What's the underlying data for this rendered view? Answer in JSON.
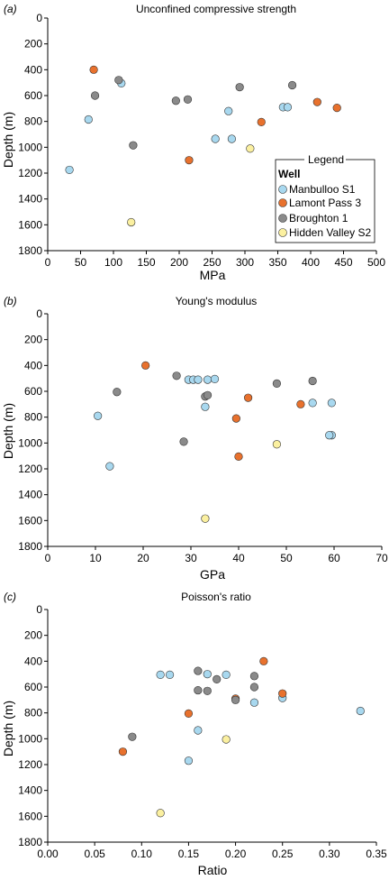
{
  "colors": {
    "Manbulloo S1": "#a8d8ef",
    "Lamont Pass 3": "#e8712d",
    "Broughton 1": "#8a8a8a",
    "Hidden Valley S2": "#fbf0a0"
  },
  "legend": {
    "title": "Legend",
    "heading": "Well",
    "entries": [
      "Manbulloo S1",
      "Lamont Pass 3",
      "Broughton 1",
      "Hidden Valley S2"
    ]
  },
  "chart_data": [
    {
      "type": "scatter",
      "panel": "(a)",
      "title": "Unconfined compressive strength",
      "xlabel": "MPa",
      "ylabel": "Depth (m)",
      "xlim": [
        0,
        500
      ],
      "ylim": [
        0,
        1800
      ],
      "y_inverted": true,
      "xticks": [
        "0",
        "50",
        "100",
        "150",
        "200",
        "250",
        "300",
        "350",
        "400",
        "450",
        "500"
      ],
      "yticks": [
        "0",
        "200",
        "400",
        "600",
        "800",
        "1000",
        "1200",
        "1400",
        "1600",
        "1800"
      ],
      "grid": false,
      "legend": "right",
      "series": [
        {
          "name": "Manbulloo S1",
          "points": [
            [
              33,
              1175
            ],
            [
              62,
              785
            ],
            [
              112,
              505
            ],
            [
              255,
              935
            ],
            [
              275,
              720
            ],
            [
              280,
              935
            ],
            [
              358,
              690
            ],
            [
              365,
              690
            ]
          ]
        },
        {
          "name": "Lamont Pass 3",
          "points": [
            [
              70,
              400
            ],
            [
              215,
              1100
            ],
            [
              325,
              805
            ],
            [
              410,
              650
            ],
            [
              440,
              695
            ]
          ]
        },
        {
          "name": "Broughton 1",
          "points": [
            [
              72,
              600
            ],
            [
              108,
              480
            ],
            [
              130,
              985
            ],
            [
              195,
              640
            ],
            [
              213,
              630
            ],
            [
              292,
              535
            ],
            [
              372,
              520
            ]
          ]
        },
        {
          "name": "Hidden Valley S2",
          "points": [
            [
              127,
              1580
            ],
            [
              308,
              1010
            ]
          ]
        }
      ]
    },
    {
      "type": "scatter",
      "panel": "(b)",
      "title": "Young's modulus",
      "xlabel": "GPa",
      "ylabel": "Depth (m)",
      "xlim": [
        0,
        70
      ],
      "ylim": [
        0,
        1800
      ],
      "y_inverted": true,
      "xticks": [
        "0",
        "10",
        "20",
        "30",
        "40",
        "50",
        "60",
        "70"
      ],
      "yticks": [
        "0",
        "200",
        "400",
        "600",
        "800",
        "1000",
        "1200",
        "1400",
        "1600",
        "1800"
      ],
      "grid": false,
      "series": [
        {
          "name": "Manbulloo S1",
          "points": [
            [
              10.5,
              790
            ],
            [
              13,
              1180
            ],
            [
              29.5,
              510
            ],
            [
              30.5,
              510
            ],
            [
              31.5,
              510
            ],
            [
              33,
              720
            ],
            [
              33.5,
              510
            ],
            [
              35,
              505
            ],
            [
              55.5,
              690
            ],
            [
              59.5,
              690
            ],
            [
              59.5,
              940
            ],
            [
              59,
              940
            ]
          ]
        },
        {
          "name": "Lamont Pass 3",
          "points": [
            [
              20.5,
              400
            ],
            [
              39.5,
              810
            ],
            [
              40,
              1105
            ],
            [
              42,
              650
            ],
            [
              53,
              700
            ]
          ]
        },
        {
          "name": "Broughton 1",
          "points": [
            [
              14.5,
              605
            ],
            [
              27,
              480
            ],
            [
              28.5,
              990
            ],
            [
              33,
              640
            ],
            [
              33.5,
              630
            ],
            [
              48,
              540
            ],
            [
              55.5,
              520
            ]
          ]
        },
        {
          "name": "Hidden Valley S2",
          "points": [
            [
              33,
              1585
            ],
            [
              48,
              1010
            ]
          ]
        }
      ]
    },
    {
      "type": "scatter",
      "panel": "(c)",
      "title": "Poisson's ratio",
      "xlabel": "Ratio",
      "ylabel": "Depth (m)",
      "xlim": [
        0,
        0.35
      ],
      "ylim": [
        0,
        1800
      ],
      "y_inverted": true,
      "xticks": [
        "0.00",
        "0.05",
        "0.10",
        "0.15",
        "0.20",
        "0.25",
        "0.30",
        "0.35"
      ],
      "yticks": [
        "0",
        "200",
        "400",
        "600",
        "800",
        "1000",
        "1200",
        "1400",
        "1600",
        "1800"
      ],
      "grid": false,
      "series": [
        {
          "name": "Manbulloo S1",
          "points": [
            [
              0.12,
              505
            ],
            [
              0.13,
              505
            ],
            [
              0.15,
              1170
            ],
            [
              0.16,
              935
            ],
            [
              0.17,
              500
            ],
            [
              0.19,
              505
            ],
            [
              0.22,
              720
            ],
            [
              0.25,
              685
            ],
            [
              0.333,
              785
            ]
          ]
        },
        {
          "name": "Lamont Pass 3",
          "points": [
            [
              0.08,
              1100
            ],
            [
              0.15,
              805
            ],
            [
              0.2,
              690
            ],
            [
              0.23,
              400
            ],
            [
              0.25,
              650
            ]
          ]
        },
        {
          "name": "Broughton 1",
          "points": [
            [
              0.09,
              985
            ],
            [
              0.16,
              475
            ],
            [
              0.16,
              625
            ],
            [
              0.17,
              630
            ],
            [
              0.18,
              540
            ],
            [
              0.2,
              700
            ],
            [
              0.22,
              515
            ],
            [
              0.22,
              600
            ]
          ]
        },
        {
          "name": "Hidden Valley S2",
          "points": [
            [
              0.12,
              1575
            ],
            [
              0.19,
              1005
            ]
          ]
        }
      ]
    }
  ]
}
